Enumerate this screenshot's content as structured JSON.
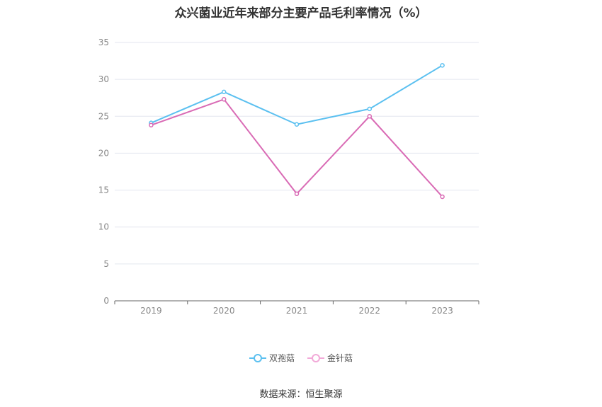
{
  "chart_data": {
    "type": "line",
    "title": "众兴菌业近年来部分主要产品毛利率情况（%）",
    "categories": [
      "2019",
      "2020",
      "2021",
      "2022",
      "2023"
    ],
    "series": [
      {
        "name": "双孢菇",
        "values": [
          24.1,
          28.3,
          23.9,
          26.0,
          31.9
        ],
        "color": "#5bc0f0"
      },
      {
        "name": "金针菇",
        "values": [
          23.8,
          27.3,
          14.5,
          25.0,
          14.1
        ],
        "color": "#d96bb5"
      }
    ],
    "ylim": [
      0,
      35
    ],
    "yticks": [
      0,
      5,
      10,
      15,
      20,
      25,
      30,
      35
    ],
    "grid": true,
    "legend_position": "bottom"
  },
  "source": "数据来源：恒生聚源"
}
